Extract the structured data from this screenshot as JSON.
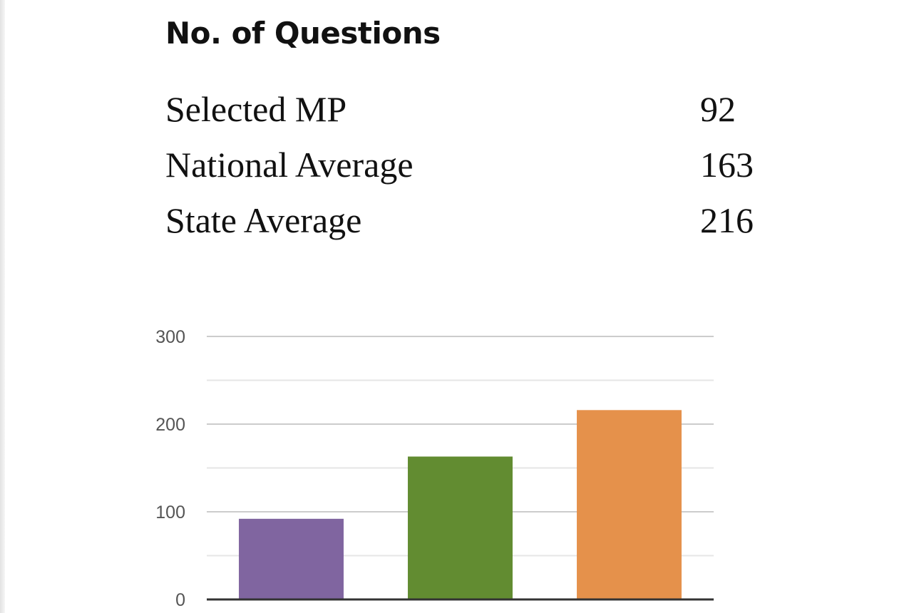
{
  "heading": "No. of Questions",
  "stats": [
    {
      "label": "Selected MP",
      "value": "92"
    },
    {
      "label": "National Average",
      "value": "163"
    },
    {
      "label": "State Average",
      "value": "216"
    }
  ],
  "chart_data": {
    "type": "bar",
    "categories": [
      "Selected MP",
      "National Average",
      "State Average"
    ],
    "values": [
      92,
      163,
      216
    ],
    "colors": [
      "#8065a0",
      "#628c31",
      "#e5914b"
    ],
    "ylim": [
      0,
      300
    ],
    "yticks": [
      "0",
      "100",
      "200",
      "300"
    ],
    "grid": true,
    "legend": "none",
    "title": "",
    "xlabel": "",
    "ylabel": ""
  }
}
